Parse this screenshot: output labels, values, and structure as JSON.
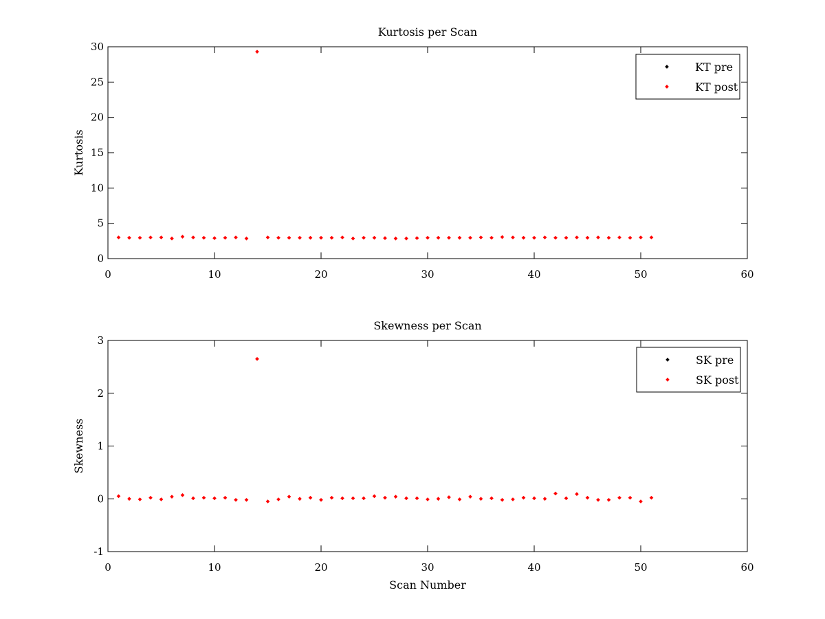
{
  "chart_data": [
    {
      "type": "scatter",
      "title": "Kurtosis per Scan",
      "xlabel": "",
      "ylabel": "Kurtosis",
      "xlim": [
        0,
        60
      ],
      "ylim": [
        0,
        30
      ],
      "xticks": [
        0,
        10,
        20,
        30,
        40,
        50,
        60
      ],
      "yticks": [
        0,
        5,
        10,
        15,
        20,
        25,
        30
      ],
      "legend_position": "top-right",
      "grid": false,
      "series": [
        {
          "name": "KT pre",
          "color": "#000000",
          "x": [],
          "y": []
        },
        {
          "name": "KT post",
          "color": "#ff0000",
          "x": [
            1,
            2,
            3,
            4,
            5,
            6,
            7,
            8,
            9,
            10,
            11,
            12,
            13,
            14,
            15,
            16,
            17,
            18,
            19,
            20,
            21,
            22,
            23,
            24,
            25,
            26,
            27,
            28,
            29,
            30,
            31,
            32,
            33,
            34,
            35,
            36,
            37,
            38,
            39,
            40,
            41,
            42,
            43,
            44,
            45,
            46,
            47,
            48,
            49,
            50,
            51
          ],
          "y": [
            3.0,
            2.95,
            2.95,
            3.0,
            3.0,
            2.85,
            3.1,
            3.0,
            2.95,
            2.9,
            2.95,
            3.0,
            2.85,
            29.3,
            3.0,
            2.95,
            2.95,
            2.95,
            2.95,
            2.95,
            2.95,
            3.0,
            2.85,
            2.95,
            2.95,
            2.9,
            2.85,
            2.85,
            2.9,
            2.95,
            2.95,
            2.95,
            2.95,
            2.95,
            3.0,
            2.95,
            3.05,
            3.0,
            2.95,
            2.95,
            3.0,
            2.95,
            2.95,
            3.0,
            2.95,
            3.0,
            2.95,
            3.0,
            2.95,
            3.0,
            3.0
          ]
        }
      ]
    },
    {
      "type": "scatter",
      "title": "Skewness per Scan",
      "xlabel": "Scan Number",
      "ylabel": "Skewness",
      "xlim": [
        0,
        60
      ],
      "ylim": [
        -1,
        3
      ],
      "xticks": [
        0,
        10,
        20,
        30,
        40,
        50,
        60
      ],
      "yticks": [
        -1,
        0,
        1,
        2,
        3
      ],
      "legend_position": "top-right",
      "grid": false,
      "series": [
        {
          "name": "SK pre",
          "color": "#000000",
          "x": [],
          "y": []
        },
        {
          "name": "SK post",
          "color": "#ff0000",
          "x": [
            1,
            2,
            3,
            4,
            5,
            6,
            7,
            8,
            9,
            10,
            11,
            12,
            13,
            14,
            15,
            16,
            17,
            18,
            19,
            20,
            21,
            22,
            23,
            24,
            25,
            26,
            27,
            28,
            29,
            30,
            31,
            32,
            33,
            34,
            35,
            36,
            37,
            38,
            39,
            40,
            41,
            42,
            43,
            44,
            45,
            46,
            47,
            48,
            49,
            50,
            51
          ],
          "y": [
            0.05,
            0.0,
            -0.01,
            0.02,
            -0.01,
            0.04,
            0.07,
            0.01,
            0.02,
            0.01,
            0.02,
            -0.02,
            -0.02,
            2.65,
            -0.05,
            -0.01,
            0.04,
            0.0,
            0.02,
            -0.02,
            0.02,
            0.01,
            0.01,
            0.01,
            0.05,
            0.02,
            0.04,
            0.01,
            0.01,
            -0.01,
            0.0,
            0.03,
            -0.01,
            0.04,
            0.0,
            0.01,
            -0.02,
            -0.01,
            0.02,
            0.01,
            0.0,
            0.1,
            0.01,
            0.09,
            0.02,
            -0.02,
            -0.02,
            0.02,
            0.02,
            -0.05,
            0.02
          ]
        }
      ]
    }
  ]
}
